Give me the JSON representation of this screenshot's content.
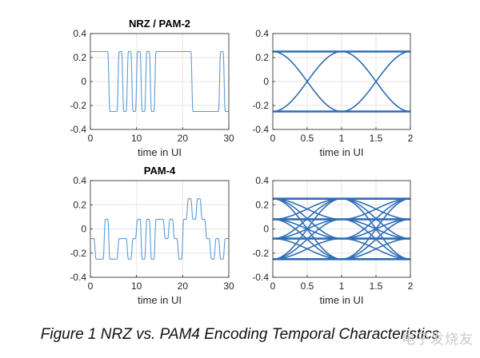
{
  "caption": "Figure 1 NRZ vs. PAM4 Encoding Temporal Characteristics",
  "watermark": "电子发烧友",
  "colors": {
    "signal": "#5b9bd5",
    "eye": "#2f6db5",
    "grid": "#e6e6e6",
    "axis": "#262626"
  },
  "chart_data": [
    {
      "id": "nrz-time",
      "type": "line",
      "title": "NRZ / PAM-2",
      "xlabel": "time in UI",
      "ylabel": "",
      "xlim": [
        0,
        30
      ],
      "ylim": [
        -0.4,
        0.4
      ],
      "xticks": [
        0,
        10,
        20,
        30
      ],
      "yticks": [
        -0.4,
        -0.2,
        0,
        0.2,
        0.4
      ],
      "grid": true,
      "symbols": [
        0.25,
        0.25,
        0.25,
        0.25,
        -0.25,
        -0.25,
        0.25,
        -0.25,
        0.25,
        -0.25,
        0.25,
        -0.25,
        0.25,
        -0.25,
        0.25,
        0.25,
        0.25,
        0.25,
        0.25,
        0.25,
        0.25,
        0.25,
        -0.25,
        -0.25,
        -0.25,
        -0.25,
        -0.25,
        -0.25,
        0.25,
        -0.25,
        -0.25
      ]
    },
    {
      "id": "nrz-eye",
      "type": "line",
      "title": "",
      "xlabel": "time in UI",
      "ylabel": "",
      "xlim": [
        0,
        2
      ],
      "ylim": [
        -0.4,
        0.4
      ],
      "xticks": [
        0,
        0.5,
        1,
        1.5,
        2
      ],
      "yticks": [
        -0.4,
        -0.2,
        0,
        0.2,
        0.4
      ],
      "grid": true,
      "levels": [
        -0.25,
        0.25
      ]
    },
    {
      "id": "pam4-time",
      "type": "line",
      "title": "PAM-4",
      "xlabel": "time in UI",
      "ylabel": "",
      "xlim": [
        0,
        30
      ],
      "ylim": [
        -0.4,
        0.4
      ],
      "xticks": [
        0,
        10,
        20,
        30
      ],
      "yticks": [
        -0.4,
        -0.2,
        0,
        0.2,
        0.4
      ],
      "grid": true,
      "symbols": [
        -0.08,
        -0.25,
        -0.25,
        0.08,
        -0.25,
        -0.25,
        -0.08,
        -0.08,
        -0.25,
        -0.08,
        0.08,
        -0.25,
        0.08,
        -0.25,
        0.08,
        0.08,
        -0.08,
        0.08,
        -0.08,
        -0.25,
        0.08,
        0.25,
        0.08,
        0.25,
        0.08,
        -0.08,
        -0.25,
        -0.08,
        -0.25,
        -0.08,
        -0.08
      ]
    },
    {
      "id": "pam4-eye",
      "type": "line",
      "title": "",
      "xlabel": "time in UI",
      "ylabel": "",
      "xlim": [
        0,
        2
      ],
      "ylim": [
        -0.4,
        0.4
      ],
      "xticks": [
        0,
        0.5,
        1,
        1.5,
        2
      ],
      "yticks": [
        -0.4,
        -0.2,
        0,
        0.2,
        0.4
      ],
      "grid": true,
      "levels": [
        -0.25,
        -0.08,
        0.08,
        0.25
      ]
    }
  ]
}
